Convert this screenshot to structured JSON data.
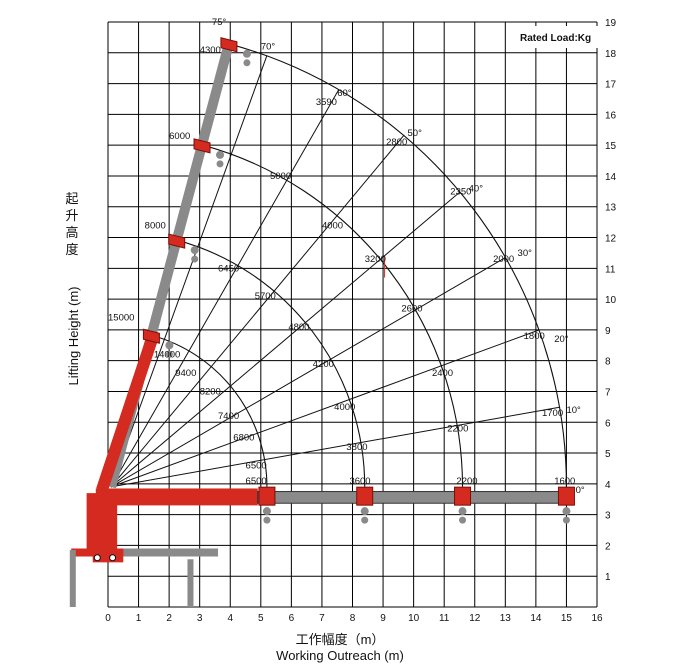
{
  "chart_data": {
    "type": "diagram",
    "xlabel_cn": "工作幅度（m）",
    "xlabel_en": "Working Outreach (m)",
    "ylabel_cn": [
      "起",
      "升",
      "高",
      "度"
    ],
    "ylabel_en": "Lifting Height (m)",
    "legend": "Rated Load:Kg",
    "x_ticks": [
      "0",
      "1",
      "2",
      "3",
      "4",
      "5",
      "6",
      "7",
      "8",
      "9",
      "10",
      "11",
      "12",
      "13",
      "14",
      "15",
      "16"
    ],
    "y_ticks": [
      "1",
      "2",
      "3",
      "4",
      "5",
      "6",
      "7",
      "8",
      "9",
      "10",
      "11",
      "12",
      "13",
      "14",
      "15",
      "16",
      "17",
      "18",
      "19"
    ],
    "xlim": [
      0,
      16
    ],
    "ylim": [
      0,
      19
    ],
    "pivot": [
      0.1,
      3.9
    ],
    "boom_lengths": [
      5.1,
      8.3,
      11.5,
      14.9
    ],
    "angles": [
      "0°",
      "10°",
      "20°",
      "30°",
      "40°",
      "50°",
      "60°",
      "70°",
      "75°"
    ],
    "angle_values": [
      0,
      10,
      20,
      30,
      40,
      50,
      60,
      70,
      75
    ],
    "load_labels": [
      {
        "text": "4300",
        "x": 3.0,
        "y": 18.0
      },
      {
        "text": "3590",
        "x": 6.8,
        "y": 16.3
      },
      {
        "text": "2800",
        "x": 9.1,
        "y": 15.0
      },
      {
        "text": "2350",
        "x": 11.2,
        "y": 13.4
      },
      {
        "text": "2000",
        "x": 12.6,
        "y": 11.2
      },
      {
        "text": "1800",
        "x": 13.6,
        "y": 8.7
      },
      {
        "text": "1700",
        "x": 14.2,
        "y": 6.2
      },
      {
        "text": "1600",
        "x": 14.6,
        "y": 4.0
      },
      {
        "text": "6000",
        "x": 2.0,
        "y": 15.2
      },
      {
        "text": "5000",
        "x": 5.3,
        "y": 13.9
      },
      {
        "text": "4000",
        "x": 7.0,
        "y": 12.3
      },
      {
        "text": "3200",
        "x": 8.4,
        "y": 11.2
      },
      {
        "text": "2600",
        "x": 9.6,
        "y": 9.6
      },
      {
        "text": "2400",
        "x": 10.6,
        "y": 7.5
      },
      {
        "text": "2200",
        "x": 11.1,
        "y": 5.7
      },
      {
        "text": "2200",
        "x": 11.4,
        "y": 4.0
      },
      {
        "text": "8000",
        "x": 1.2,
        "y": 12.3
      },
      {
        "text": "6450",
        "x": 3.6,
        "y": 10.9
      },
      {
        "text": "5700",
        "x": 4.8,
        "y": 10.0
      },
      {
        "text": "4800",
        "x": 5.9,
        "y": 9.0
      },
      {
        "text": "4200",
        "x": 6.7,
        "y": 7.8
      },
      {
        "text": "4000",
        "x": 7.4,
        "y": 6.4
      },
      {
        "text": "3800",
        "x": 7.8,
        "y": 5.1
      },
      {
        "text": "3600",
        "x": 7.9,
        "y": 4.0
      },
      {
        "text": "15000",
        "x": 0.0,
        "y": 9.3
      },
      {
        "text": "14000",
        "x": 1.5,
        "y": 8.1
      },
      {
        "text": "9400",
        "x": 2.2,
        "y": 7.5
      },
      {
        "text": "8200",
        "x": 3.0,
        "y": 6.9
      },
      {
        "text": "7400",
        "x": 3.6,
        "y": 6.1
      },
      {
        "text": "6800",
        "x": 4.1,
        "y": 5.4
      },
      {
        "text": "6500",
        "x": 4.5,
        "y": 4.5
      },
      {
        "text": "6500",
        "x": 4.5,
        "y": 4.0
      }
    ],
    "angle_label_positions": [
      {
        "text": "75°",
        "x": 3.4,
        "y": 18.9
      },
      {
        "text": "70°",
        "x": 5.0,
        "y": 18.1
      },
      {
        "text": "60°",
        "x": 7.5,
        "y": 16.6
      },
      {
        "text": "50°",
        "x": 9.8,
        "y": 15.3
      },
      {
        "text": "40°",
        "x": 11.8,
        "y": 13.5
      },
      {
        "text": "30°",
        "x": 13.4,
        "y": 11.4
      },
      {
        "text": "20°",
        "x": 14.6,
        "y": 8.6
      },
      {
        "text": "10°",
        "x": 15.0,
        "y": 6.3
      },
      {
        "text": "0°",
        "x": 15.3,
        "y": 3.7
      }
    ],
    "colors": {
      "boom": "#d42a1f",
      "grey": "#8a8a8a",
      "dark": "#333333",
      "grid": "#000000"
    }
  }
}
